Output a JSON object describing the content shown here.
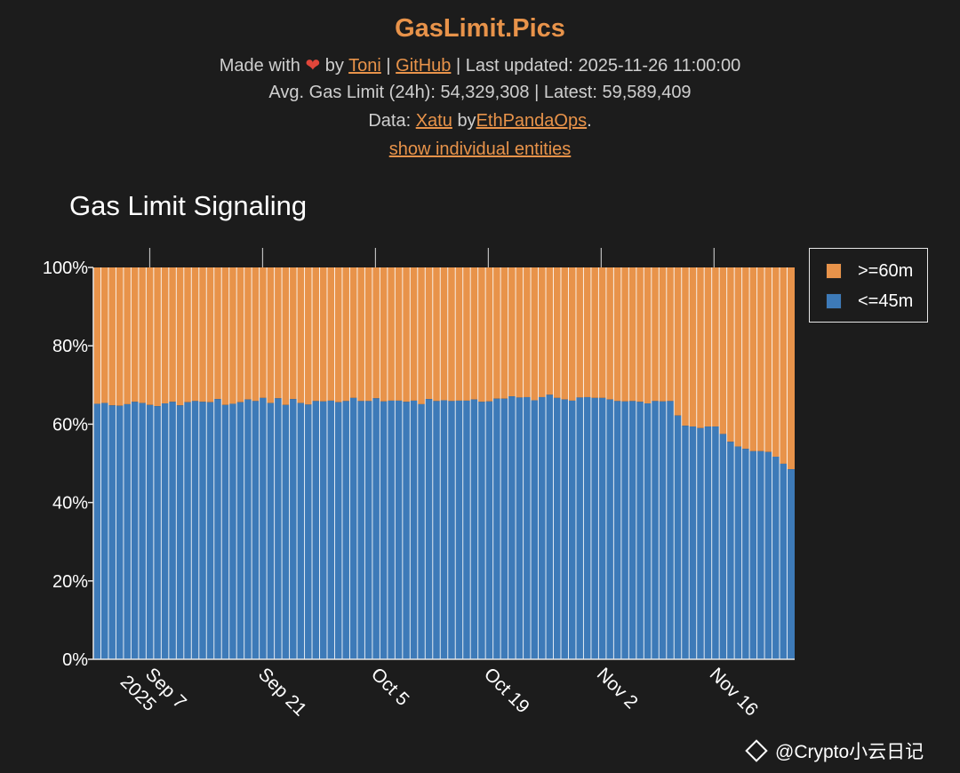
{
  "header": {
    "title": "GasLimit.Pics",
    "made_with": "Made with",
    "heart": "❤",
    "by": "by",
    "author_link": "Toni",
    "sep1": "|",
    "github_link": "GitHub",
    "last_updated": "| Last updated: 2025-11-26 11:00:00",
    "avg_line": "Avg. Gas Limit (24h): 54,329,308 | Latest: 59,589,409",
    "data_prefix": "Data:",
    "data_link": "Xatu",
    "data_by": "by",
    "data_org_link": "EthPandaOps",
    "data_suffix": ".",
    "toggle_link": "show individual entities"
  },
  "chart_title": "Gas Limit Signaling",
  "legend": [
    {
      "label": ">=60m",
      "color": "#e8934a"
    },
    {
      "label": "<=45m",
      "color": "#3d7ab8"
    }
  ],
  "watermark": "@Crypto小云日记",
  "chart_data": {
    "type": "bar",
    "stacked": true,
    "normalized": true,
    "x_start": "2025-08-31",
    "x_end": "2025-11-26",
    "x_tick_labels": [
      {
        "date": "2025-09-07",
        "label": "Sep 7",
        "sub": "2025"
      },
      {
        "date": "2025-09-21",
        "label": "Sep 21",
        "sub": ""
      },
      {
        "date": "2025-10-05",
        "label": "Oct 5",
        "sub": ""
      },
      {
        "date": "2025-10-19",
        "label": "Oct 19",
        "sub": ""
      },
      {
        "date": "2025-11-02",
        "label": "Nov 2",
        "sub": ""
      },
      {
        "date": "2025-11-16",
        "label": "Nov 16",
        "sub": ""
      }
    ],
    "y_ticks": [
      "0%",
      "20%",
      "40%",
      "60%",
      "80%",
      "100%"
    ],
    "ylim": [
      0,
      100
    ],
    "series": [
      {
        "name": "<=45m",
        "color": "#3d7ab8",
        "values": [
          65.2,
          65.4,
          64.8,
          64.7,
          65.1,
          65.7,
          65.4,
          64.9,
          64.6,
          65.3,
          65.7,
          64.8,
          65.6,
          65.9,
          65.7,
          65.6,
          66.4,
          64.9,
          65.2,
          65.6,
          66.3,
          65.9,
          66.7,
          65.4,
          66.6,
          64.9,
          66.4,
          65.4,
          65.0,
          65.9,
          65.8,
          66.0,
          65.6,
          65.9,
          66.7,
          65.9,
          65.9,
          66.6,
          65.8,
          66.0,
          66.0,
          65.7,
          66.0,
          65.1,
          66.4,
          65.9,
          66.1,
          65.9,
          66.0,
          66.0,
          66.3,
          65.7,
          65.8,
          66.5,
          66.5,
          67.1,
          66.8,
          66.9,
          66.1,
          66.9,
          67.5,
          66.7,
          66.3,
          66.0,
          66.8,
          66.9,
          66.7,
          66.7,
          66.3,
          65.9,
          65.8,
          65.9,
          65.7,
          65.3,
          65.9,
          65.8,
          65.9,
          62.2,
          59.6,
          59.4,
          59.0,
          59.4,
          59.4,
          57.5,
          55.5,
          54.3,
          53.7,
          53.1,
          53.1,
          52.9,
          51.7,
          49.9,
          48.5
        ]
      },
      {
        "name": ">=60m",
        "color": "#e8934a",
        "values": [
          34.8,
          34.6,
          35.2,
          35.3,
          34.9,
          34.3,
          34.6,
          35.1,
          35.4,
          34.7,
          34.3,
          35.2,
          34.4,
          34.1,
          34.3,
          34.4,
          33.6,
          35.1,
          34.8,
          34.4,
          33.7,
          34.1,
          33.3,
          34.6,
          33.4,
          35.1,
          33.6,
          34.6,
          35.0,
          34.1,
          34.2,
          34.0,
          34.4,
          34.1,
          33.3,
          34.1,
          34.1,
          33.4,
          34.2,
          34.0,
          34.0,
          34.3,
          34.0,
          34.9,
          33.6,
          34.1,
          33.9,
          34.1,
          34.0,
          34.0,
          33.7,
          34.3,
          34.2,
          33.5,
          33.5,
          32.9,
          33.2,
          33.1,
          33.9,
          33.1,
          32.5,
          33.3,
          33.7,
          34.0,
          33.2,
          33.1,
          33.3,
          33.3,
          33.7,
          34.1,
          34.2,
          34.1,
          34.3,
          34.7,
          34.1,
          34.2,
          34.1,
          37.8,
          40.4,
          40.6,
          41.0,
          40.6,
          40.6,
          42.5,
          44.5,
          45.7,
          46.3,
          46.9,
          46.9,
          47.1,
          48.3,
          50.1,
          51.5
        ]
      }
    ]
  }
}
